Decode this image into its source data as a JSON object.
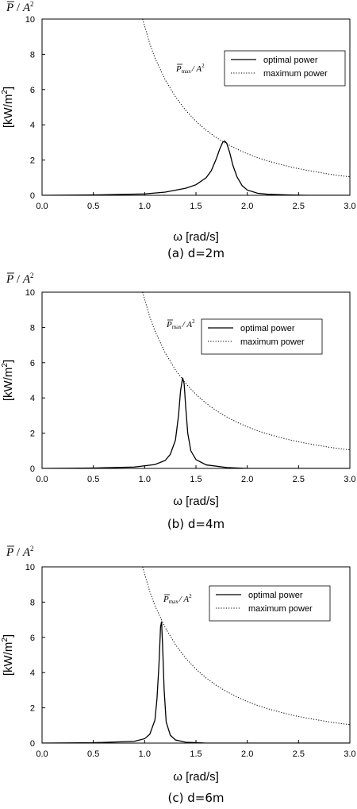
{
  "chart_data": [
    {
      "type": "line",
      "caption": "(a) d=2m",
      "title_p": "P",
      "title_sep": " / ",
      "title_a": "A",
      "title_sup": "2",
      "xlabel": "ω [rad/s]",
      "ylabel_main": "[kW/m",
      "ylabel_sup": "2",
      "ylabel_end": "]",
      "xlim": [
        0,
        3
      ],
      "ylim": [
        0,
        10
      ],
      "xticks": [
        "0.0",
        "0.5",
        "1.0",
        "1.5",
        "2.0",
        "2.5",
        "3.0"
      ],
      "yticks": [
        "0",
        "2",
        "4",
        "6",
        "8",
        "10"
      ],
      "annotation_p": "P",
      "annotation_sub": "max",
      "annotation_rest": "/ A",
      "annotation_sup": "2",
      "legend_position": "top-right",
      "series": [
        {
          "name": "optimal power",
          "style": "solid",
          "x": [
            0.0,
            0.5,
            1.0,
            1.2,
            1.4,
            1.5,
            1.6,
            1.65,
            1.7,
            1.73,
            1.76,
            1.78,
            1.8,
            1.83,
            1.86,
            1.9,
            1.95,
            2.0,
            2.1,
            2.2,
            2.4,
            2.6,
            3.0
          ],
          "y": [
            0.0,
            0.02,
            0.08,
            0.18,
            0.4,
            0.6,
            1.0,
            1.4,
            2.1,
            2.6,
            3.0,
            3.08,
            2.95,
            2.4,
            1.7,
            1.05,
            0.55,
            0.3,
            0.12,
            0.06,
            0.02,
            0.0,
            0.0
          ]
        },
        {
          "name": "maximum power",
          "style": "dotted",
          "x": [
            0.98,
            1.05,
            1.1,
            1.2,
            1.3,
            1.4,
            1.5,
            1.6,
            1.7,
            1.8,
            1.9,
            2.0,
            2.1,
            2.2,
            2.3,
            2.4,
            2.5,
            2.6,
            2.7,
            2.8,
            2.9,
            3.0
          ],
          "y": [
            10.0,
            8.6,
            7.8,
            6.56,
            5.59,
            4.82,
            4.2,
            3.69,
            3.27,
            2.92,
            2.62,
            2.36,
            2.14,
            1.95,
            1.79,
            1.64,
            1.51,
            1.4,
            1.3,
            1.2,
            1.12,
            1.05
          ]
        }
      ]
    },
    {
      "type": "line",
      "caption": "(b) d=4m",
      "title_p": "P",
      "title_sep": " / ",
      "title_a": "A",
      "title_sup": "2",
      "xlabel": "ω [rad/s]",
      "ylabel_main": "[kW/m",
      "ylabel_sup": "2",
      "ylabel_end": "]",
      "xlim": [
        0,
        3
      ],
      "ylim": [
        0,
        10
      ],
      "xticks": [
        "0.0",
        "0.5",
        "1.0",
        "1.5",
        "2.0",
        "2.5",
        "3.0"
      ],
      "yticks": [
        "0",
        "2",
        "4",
        "6",
        "8",
        "10"
      ],
      "annotation_p": "P",
      "annotation_sub": "max",
      "annotation_rest": "/ A",
      "annotation_sup": "2",
      "legend_position": "top-right",
      "series": [
        {
          "name": "optimal power",
          "style": "solid",
          "x": [
            0.0,
            0.5,
            0.9,
            1.1,
            1.2,
            1.25,
            1.3,
            1.33,
            1.35,
            1.37,
            1.385,
            1.4,
            1.42,
            1.45,
            1.5,
            1.6,
            1.8,
            2.0,
            3.0
          ],
          "y": [
            0.0,
            0.02,
            0.08,
            0.22,
            0.45,
            0.8,
            1.6,
            3.0,
            4.4,
            5.15,
            4.8,
            3.5,
            2.0,
            1.0,
            0.5,
            0.2,
            0.05,
            0.0,
            0.0
          ]
        },
        {
          "name": "maximum power",
          "style": "dotted",
          "x": [
            0.98,
            1.05,
            1.1,
            1.2,
            1.3,
            1.4,
            1.5,
            1.6,
            1.7,
            1.8,
            1.9,
            2.0,
            2.1,
            2.2,
            2.3,
            2.4,
            2.5,
            2.6,
            2.7,
            2.8,
            2.9,
            3.0
          ],
          "y": [
            10.0,
            8.6,
            7.8,
            6.56,
            5.59,
            4.82,
            4.2,
            3.69,
            3.27,
            2.92,
            2.62,
            2.36,
            2.14,
            1.95,
            1.79,
            1.64,
            1.51,
            1.4,
            1.3,
            1.2,
            1.12,
            1.05
          ]
        }
      ]
    },
    {
      "type": "line",
      "caption": "(c) d=6m",
      "title_p": "P",
      "title_sep": " / ",
      "title_a": "A",
      "title_sup": "2",
      "xlabel": "ω [rad/s]",
      "ylabel_main": "[kW/m",
      "ylabel_sup": "2",
      "ylabel_end": "]",
      "xlim": [
        0,
        3
      ],
      "ylim": [
        0,
        10
      ],
      "xticks": [
        "0.0",
        "0.5",
        "1.0",
        "1.5",
        "2.0",
        "2.5",
        "3.0"
      ],
      "yticks": [
        "0",
        "2",
        "4",
        "6",
        "8",
        "10"
      ],
      "annotation_p": "P",
      "annotation_sub": "max",
      "annotation_rest": "/ A",
      "annotation_sup": "2",
      "legend_position": "top-right",
      "series": [
        {
          "name": "optimal power",
          "style": "solid",
          "x": [
            0.0,
            0.5,
            0.9,
            1.0,
            1.05,
            1.1,
            1.12,
            1.14,
            1.155,
            1.165,
            1.175,
            1.19,
            1.21,
            1.25,
            1.3,
            1.4,
            1.6,
            3.0
          ],
          "y": [
            0.0,
            0.02,
            0.1,
            0.25,
            0.5,
            1.3,
            2.5,
            4.5,
            6.6,
            6.9,
            5.5,
            3.0,
            1.2,
            0.45,
            0.18,
            0.05,
            0.0,
            0.0
          ]
        },
        {
          "name": "maximum power",
          "style": "dotted",
          "x": [
            0.98,
            1.05,
            1.1,
            1.2,
            1.3,
            1.4,
            1.5,
            1.6,
            1.7,
            1.8,
            1.9,
            2.0,
            2.1,
            2.2,
            2.3,
            2.4,
            2.5,
            2.6,
            2.7,
            2.8,
            2.9,
            3.0
          ],
          "y": [
            10.0,
            8.6,
            7.8,
            6.56,
            5.59,
            4.82,
            4.2,
            3.69,
            3.27,
            2.92,
            2.62,
            2.36,
            2.14,
            1.95,
            1.79,
            1.64,
            1.51,
            1.4,
            1.3,
            1.2,
            1.12,
            1.05
          ]
        }
      ]
    }
  ]
}
